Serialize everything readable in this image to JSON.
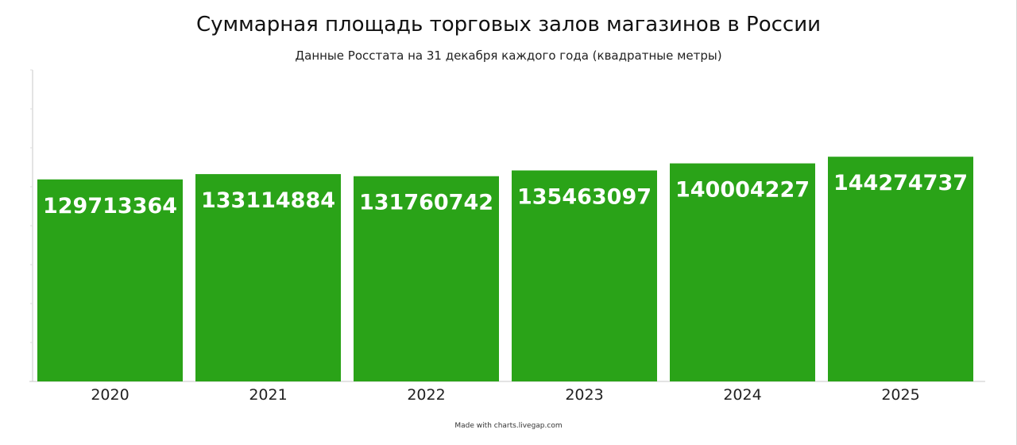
{
  "chart_data": {
    "type": "bar",
    "title": "Суммарная площадь торговых залов магазинов в России",
    "subtitle": "Данные Росстата на 31 декабря каждого года (квадратные метры)",
    "categories": [
      "2020",
      "2021",
      "2022",
      "2023",
      "2024",
      "2025"
    ],
    "values": [
      129713364,
      133114884,
      131760742,
      135463097,
      140004227,
      144274737
    ],
    "data_labels": [
      "129713364",
      "133114884",
      "131760742",
      "135463097",
      "140004227",
      "144274737"
    ],
    "xlabel": "",
    "ylabel": "",
    "ylim": [
      0,
      200000000
    ],
    "grid": false,
    "legend": "none",
    "bar_color": "#2aa318",
    "label_color": "#ffffff"
  },
  "footer": {
    "credit": "Made with charts.livegap.com"
  }
}
